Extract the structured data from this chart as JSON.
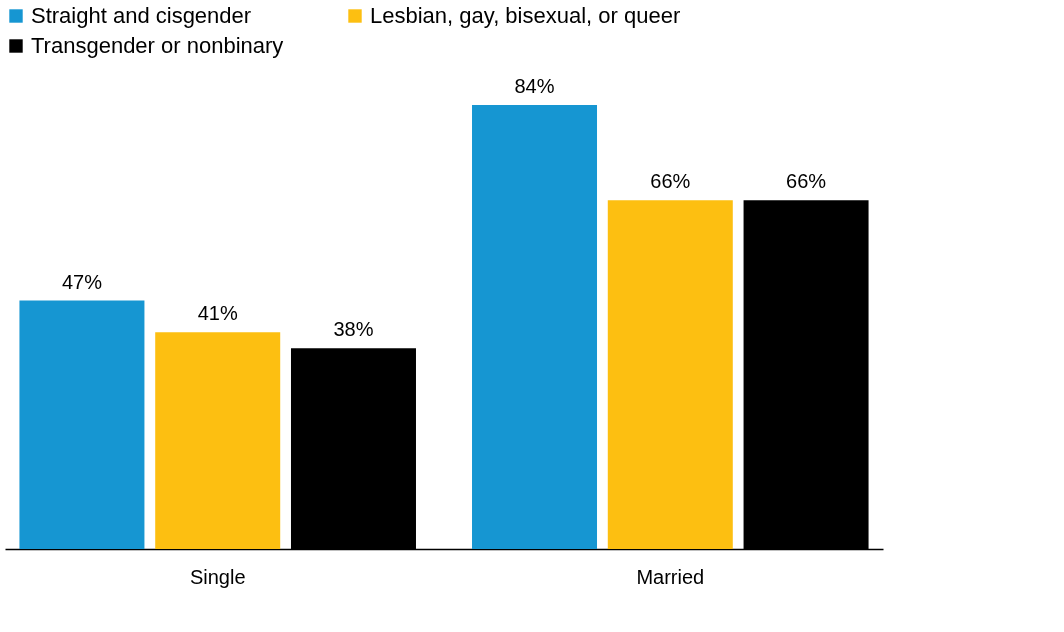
{
  "chart_data": {
    "type": "bar",
    "categories": [
      "Single",
      "Married"
    ],
    "series": [
      {
        "name": "Straight and cisgender",
        "color": "#1696d2",
        "values": [
          47,
          84
        ],
        "value_labels": [
          "47%",
          "84%"
        ]
      },
      {
        "name": "Lesbian, gay, bisexual, or queer",
        "color": "#fdbf11",
        "values": [
          41,
          66
        ],
        "value_labels": [
          "41%",
          "66%"
        ]
      },
      {
        "name": "Transgender or nonbinary",
        "color": "#000000",
        "values": [
          38,
          66
        ],
        "value_labels": [
          "38%",
          "66%"
        ]
      }
    ],
    "grid": false,
    "legend": "top left"
  }
}
